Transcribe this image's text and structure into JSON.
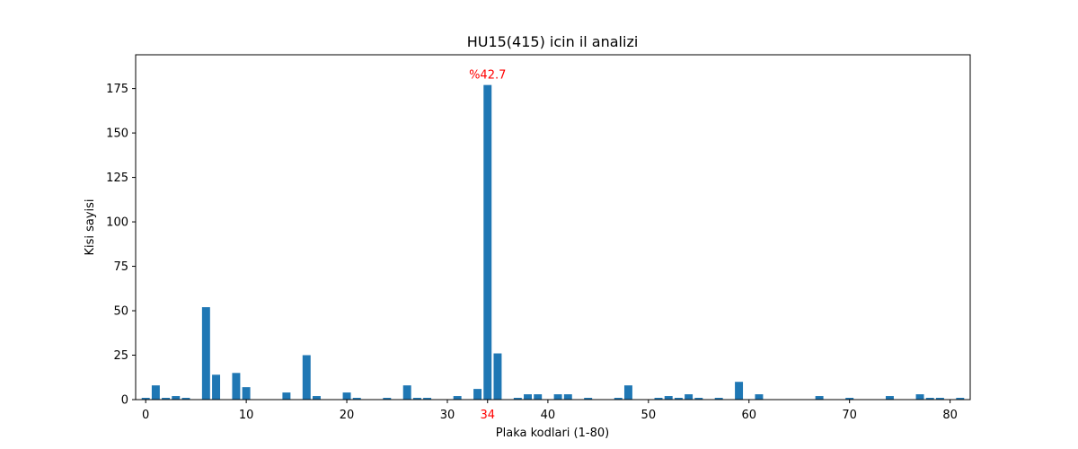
{
  "chart_data": {
    "type": "bar",
    "title": "HU15(415) icin il analizi",
    "xlabel": "Plaka kodlari (1-80)",
    "ylabel": "Kisi sayisi",
    "xlim": [
      -1,
      82
    ],
    "ylim": [
      0,
      194
    ],
    "xticks": [
      0,
      10,
      20,
      30,
      40,
      50,
      60,
      70,
      80
    ],
    "yticks": [
      0,
      25,
      50,
      75,
      100,
      125,
      150,
      175
    ],
    "highlight_tick": {
      "value": 34,
      "label": "34",
      "color": "#ff0000"
    },
    "annotation": {
      "x": 34,
      "y": 177,
      "text": "%42.7",
      "color": "#ff0000"
    },
    "bar_color": "#1f77b4",
    "grid": false,
    "x": [
      0,
      1,
      2,
      3,
      4,
      6,
      7,
      9,
      10,
      14,
      16,
      17,
      20,
      21,
      24,
      26,
      27,
      28,
      31,
      33,
      34,
      35,
      37,
      38,
      39,
      41,
      42,
      44,
      47,
      48,
      51,
      52,
      53,
      54,
      55,
      57,
      59,
      61,
      67,
      70,
      74,
      77,
      78,
      79,
      81
    ],
    "values": [
      1,
      8,
      1,
      2,
      1,
      52,
      14,
      15,
      7,
      4,
      25,
      2,
      4,
      1,
      1,
      8,
      1,
      1,
      2,
      6,
      177,
      26,
      1,
      3,
      3,
      3,
      3,
      1,
      1,
      8,
      1,
      2,
      1,
      3,
      1,
      1,
      10,
      3,
      2,
      1,
      2,
      3,
      1,
      1,
      1
    ]
  }
}
